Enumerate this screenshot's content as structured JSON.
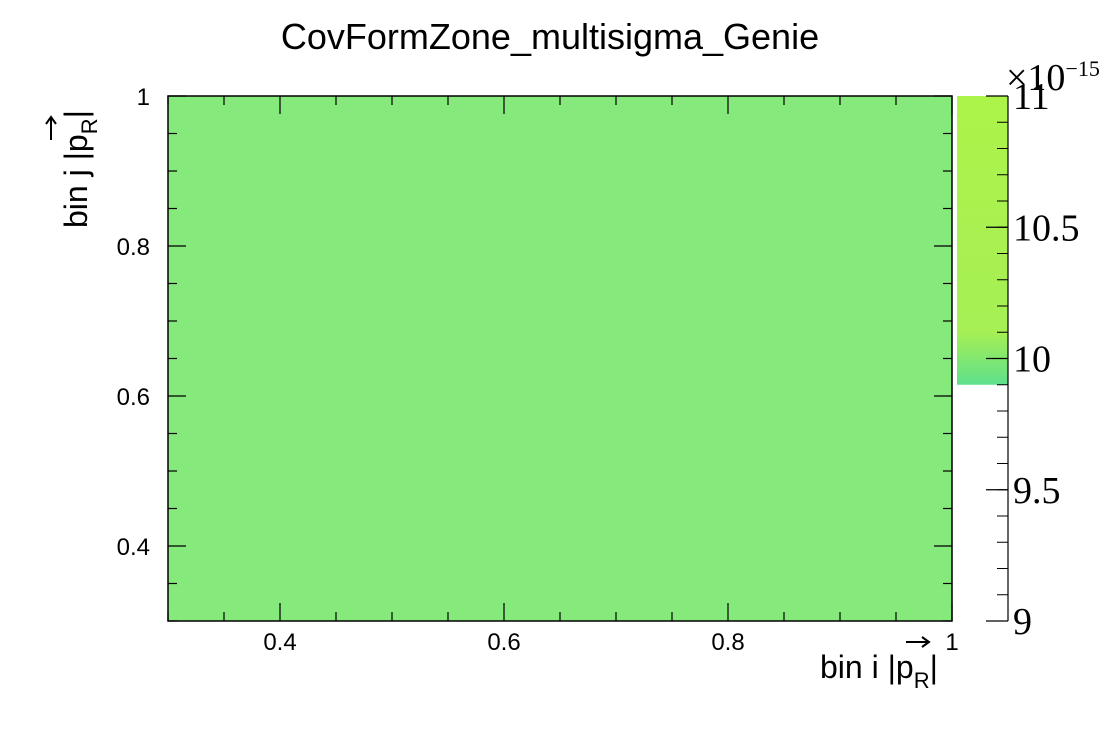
{
  "chart_data": {
    "type": "heatmap",
    "title": "CovFormZone_multisigma_Genie",
    "xlabel": {
      "prefix": "bin i |",
      "symbol": "p",
      "subscript": "R",
      "suffix": "|"
    },
    "ylabel": {
      "prefix": "bin j |",
      "symbol": "p",
      "subscript": "R",
      "suffix": "|"
    },
    "xlim": [
      0.3,
      1.0
    ],
    "ylim": [
      0.3,
      1.0
    ],
    "x_ticks": [
      "0.4",
      "0.6",
      "0.8",
      "1"
    ],
    "y_ticks": [
      "0.4",
      "0.6",
      "0.8",
      "1"
    ],
    "x_tick_values": [
      0.4,
      0.6,
      0.8,
      1.0
    ],
    "y_tick_values": [
      0.4,
      0.6,
      0.8,
      1.0
    ],
    "cells": [
      {
        "x_range": [
          0.3,
          1.0
        ],
        "y_range": [
          0.3,
          1.0
        ],
        "value": 9.95e-15
      }
    ],
    "cell_color": "#86e97b",
    "colorbar": {
      "zlim": [
        9.0,
        11.0
      ],
      "multiplier_base": "×10",
      "multiplier_exponent": "−15",
      "ticks": [
        "9",
        "9.5",
        "10",
        "10.5",
        "11"
      ],
      "tick_values": [
        9.0,
        9.5,
        10.0,
        10.5,
        11.0
      ],
      "filled_range": [
        9.9,
        11.0
      ],
      "colors": {
        "low": "#5ee08c",
        "mid": "#a6ef55",
        "high": "#acf449"
      }
    }
  }
}
